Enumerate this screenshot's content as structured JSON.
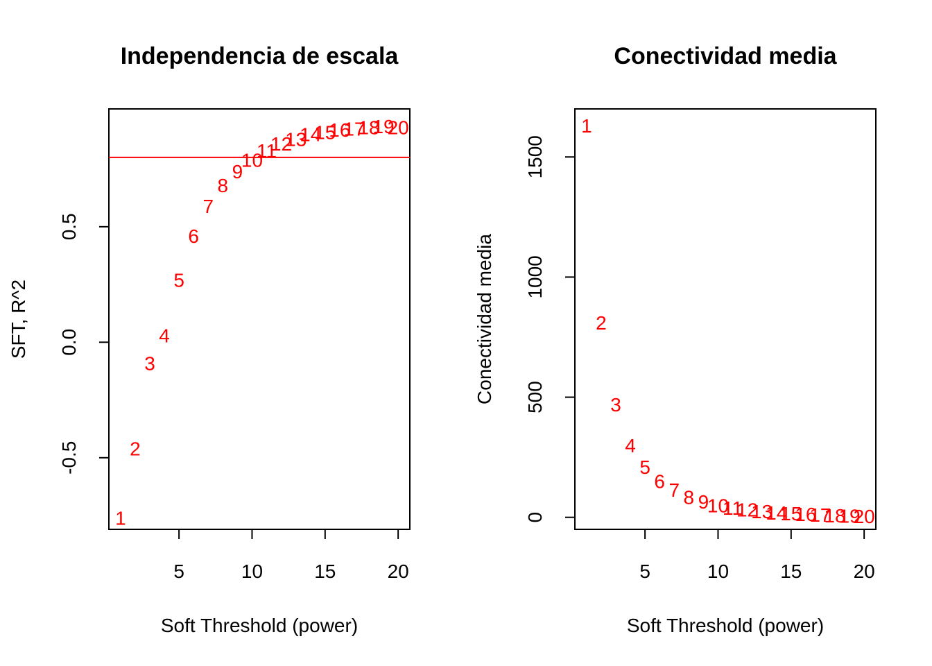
{
  "chart_data": [
    {
      "type": "scatter",
      "title": "Independencia de escala",
      "xlabel": "Soft Threshold (power)",
      "ylabel": "SFT, R^2",
      "xlim": [
        0.2,
        20.8
      ],
      "ylim": [
        -0.81,
        1.01
      ],
      "x_ticks": [
        5,
        10,
        15,
        20
      ],
      "y_ticks": [
        -0.5,
        0.0,
        0.5
      ],
      "y_tick_labels": [
        "-0.5",
        "0.0",
        "0.5"
      ],
      "grid": false,
      "point_color": "#ff0000",
      "reference_line": {
        "y": 0.8,
        "color": "#ff0000"
      },
      "x": [
        1,
        2,
        3,
        4,
        5,
        6,
        7,
        8,
        9,
        10,
        11,
        12,
        13,
        14,
        15,
        16,
        17,
        18,
        19,
        20
      ],
      "labels": [
        "1",
        "2",
        "3",
        "4",
        "5",
        "6",
        "7",
        "8",
        "9",
        "10",
        "11",
        "12",
        "13",
        "14",
        "15",
        "16",
        "17",
        "18",
        "19",
        "20"
      ],
      "y": [
        -0.76,
        -0.46,
        -0.09,
        0.03,
        0.27,
        0.46,
        0.59,
        0.68,
        0.74,
        0.79,
        0.83,
        0.86,
        0.88,
        0.9,
        0.91,
        0.92,
        0.925,
        0.93,
        0.935,
        0.93
      ]
    },
    {
      "type": "scatter",
      "title": "Conectividad media",
      "xlabel": "Soft Threshold (power)",
      "ylabel": "Conectividad media",
      "xlim": [
        0.2,
        20.8
      ],
      "ylim": [
        -50,
        1700
      ],
      "x_ticks": [
        5,
        10,
        15,
        20
      ],
      "y_ticks": [
        0,
        500,
        1000,
        1500
      ],
      "y_tick_labels": [
        "0",
        "500",
        "1000",
        "1500"
      ],
      "grid": false,
      "point_color": "#ff0000",
      "x": [
        1,
        2,
        3,
        4,
        5,
        6,
        7,
        8,
        9,
        10,
        11,
        12,
        13,
        14,
        15,
        16,
        17,
        18,
        19,
        20
      ],
      "labels": [
        "1",
        "2",
        "3",
        "4",
        "5",
        "6",
        "7",
        "8",
        "9",
        "10",
        "11",
        "12",
        "13",
        "14",
        "15",
        "16",
        "17",
        "18",
        "19",
        "20"
      ],
      "y": [
        1630,
        810,
        470,
        300,
        210,
        150,
        115,
        85,
        65,
        50,
        40,
        32,
        25,
        20,
        16,
        13,
        10,
        8,
        7,
        5
      ]
    }
  ]
}
